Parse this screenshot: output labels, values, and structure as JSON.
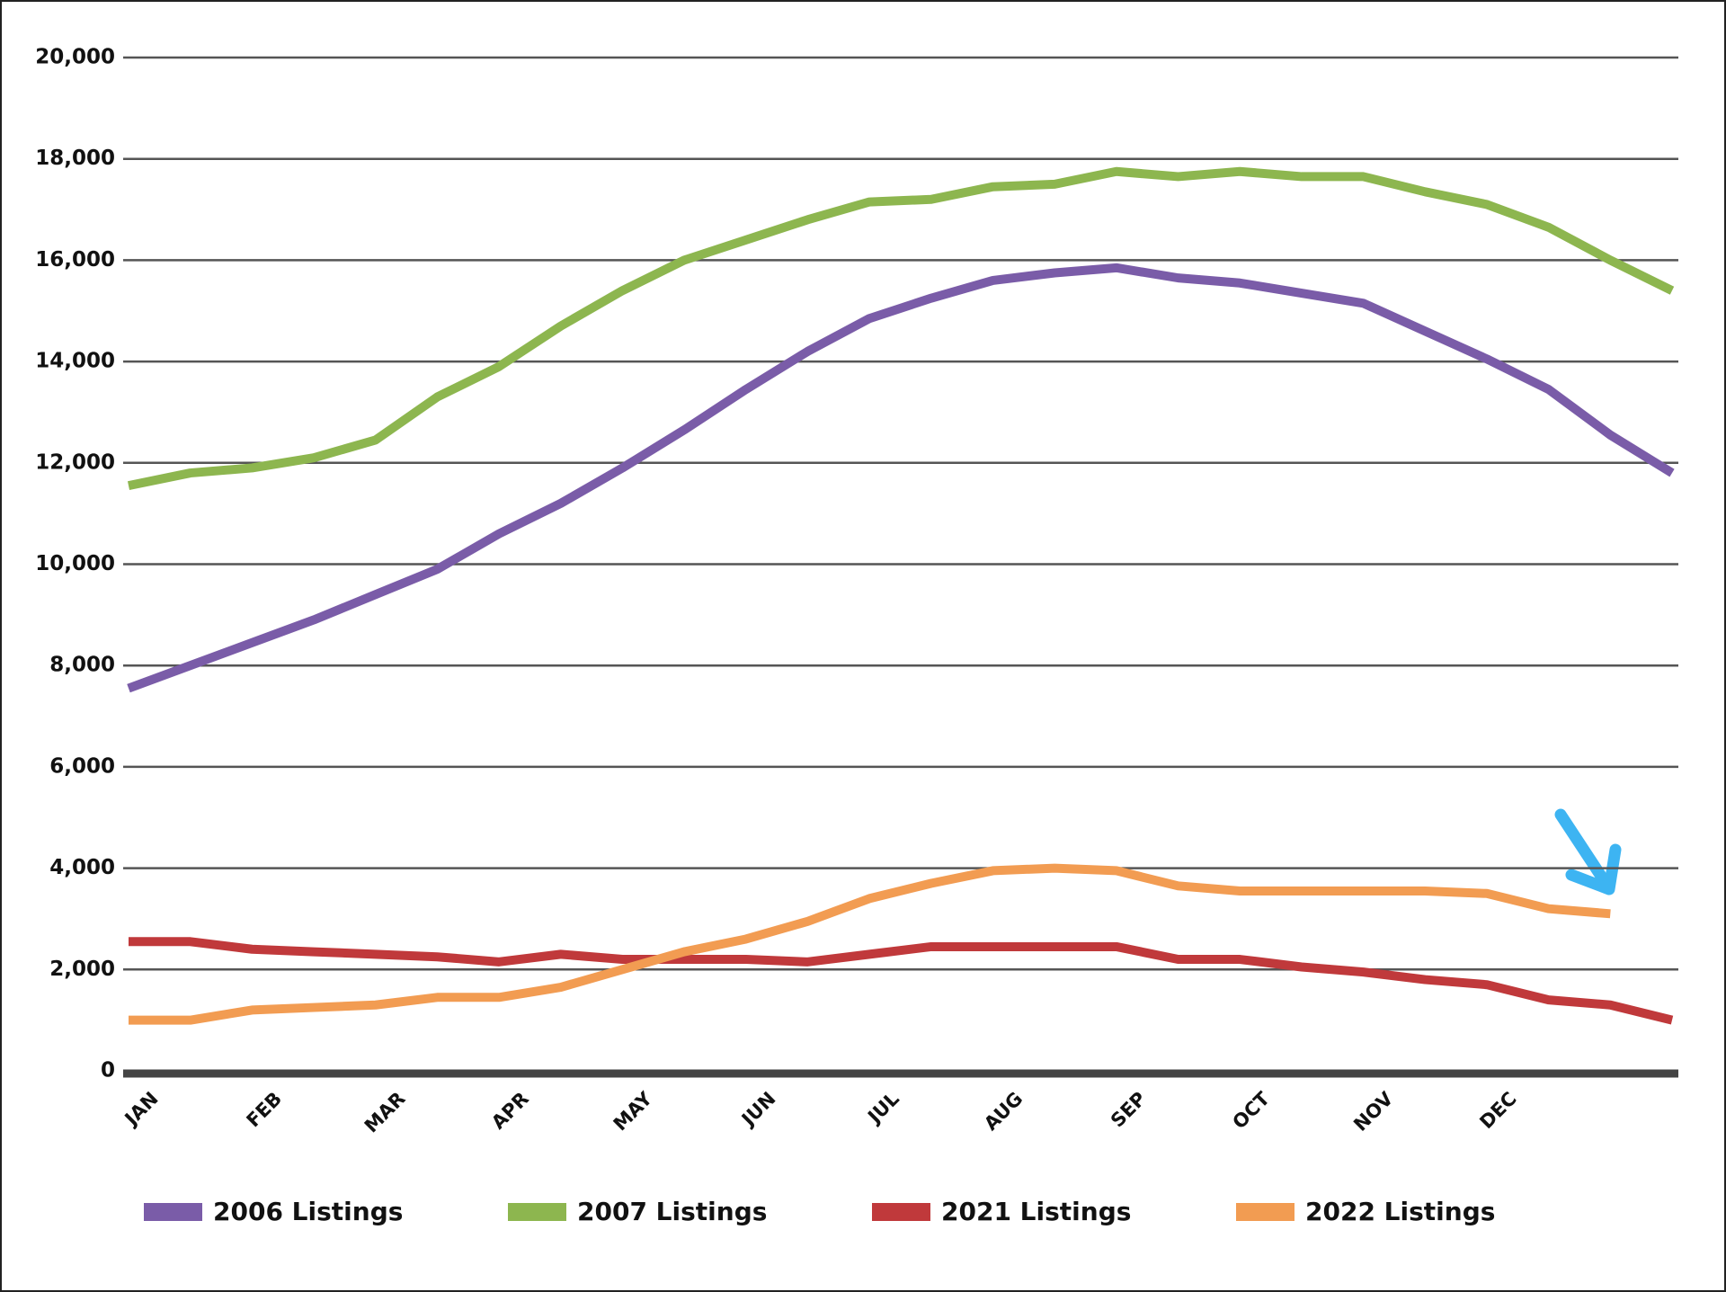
{
  "chart_data": {
    "type": "line",
    "categories": [
      "JAN",
      null,
      "FEB",
      null,
      "MAR",
      null,
      "APR",
      null,
      "MAY",
      null,
      "JUN",
      null,
      "JUL",
      null,
      "AUG",
      null,
      "SEP",
      null,
      "OCT",
      null,
      "NOV",
      null,
      "DEC",
      null,
      null,
      null
    ],
    "series": [
      {
        "name": "2006 Listings",
        "color": "#7a5ca8",
        "values": [
          7550,
          8000,
          8450,
          8900,
          9400,
          9900,
          10600,
          11200,
          11900,
          12650,
          13450,
          14200,
          14850,
          15250,
          15600,
          15750,
          15850,
          15650,
          15550,
          15350,
          15150,
          14600,
          14050,
          13450,
          12550,
          11800
        ]
      },
      {
        "name": "2007 Listings",
        "color": "#8db64f",
        "values": [
          11550,
          11800,
          11900,
          12100,
          12450,
          13300,
          13900,
          14700,
          15400,
          16000,
          16400,
          16800,
          17150,
          17200,
          17450,
          17500,
          17750,
          17650,
          17750,
          17650,
          17650,
          17350,
          17100,
          16650,
          16000,
          15400
        ]
      },
      {
        "name": "2021 Listings",
        "color": "#c0393b",
        "values": [
          2550,
          2550,
          2400,
          2350,
          2300,
          2250,
          2150,
          2300,
          2200,
          2200,
          2200,
          2150,
          2300,
          2450,
          2450,
          2450,
          2450,
          2200,
          2200,
          2050,
          1950,
          1800,
          1700,
          1400,
          1300,
          1000
        ]
      },
      {
        "name": "2022 Listings",
        "color": "#f29c52",
        "values": [
          1000,
          1000,
          1200,
          1250,
          1300,
          1450,
          1450,
          1650,
          2000,
          2350,
          2600,
          2950,
          3400,
          3700,
          3950,
          4000,
          3950,
          3650,
          3550,
          3550,
          3550,
          3550,
          3500,
          3200,
          3100,
          null
        ]
      }
    ],
    "ylim": [
      0,
      20000
    ],
    "yticks": [
      0,
      {
        "value": 2000,
        "label": "2,000"
      },
      {
        "value": 4000,
        "label": "4,000"
      },
      {
        "value": 6000,
        "label": "6,000"
      },
      {
        "value": 8000,
        "label": "8,000"
      },
      {
        "value": 10000,
        "label": "10,000"
      },
      {
        "value": 12000,
        "label": "12,000"
      },
      {
        "value": 14000,
        "label": "14,000"
      },
      {
        "value": 16000,
        "label": "16,000"
      },
      {
        "value": 18000,
        "label": "18,000"
      },
      {
        "value": 20000,
        "label": "20,000"
      }
    ],
    "grid": true,
    "legend": "bottom"
  }
}
